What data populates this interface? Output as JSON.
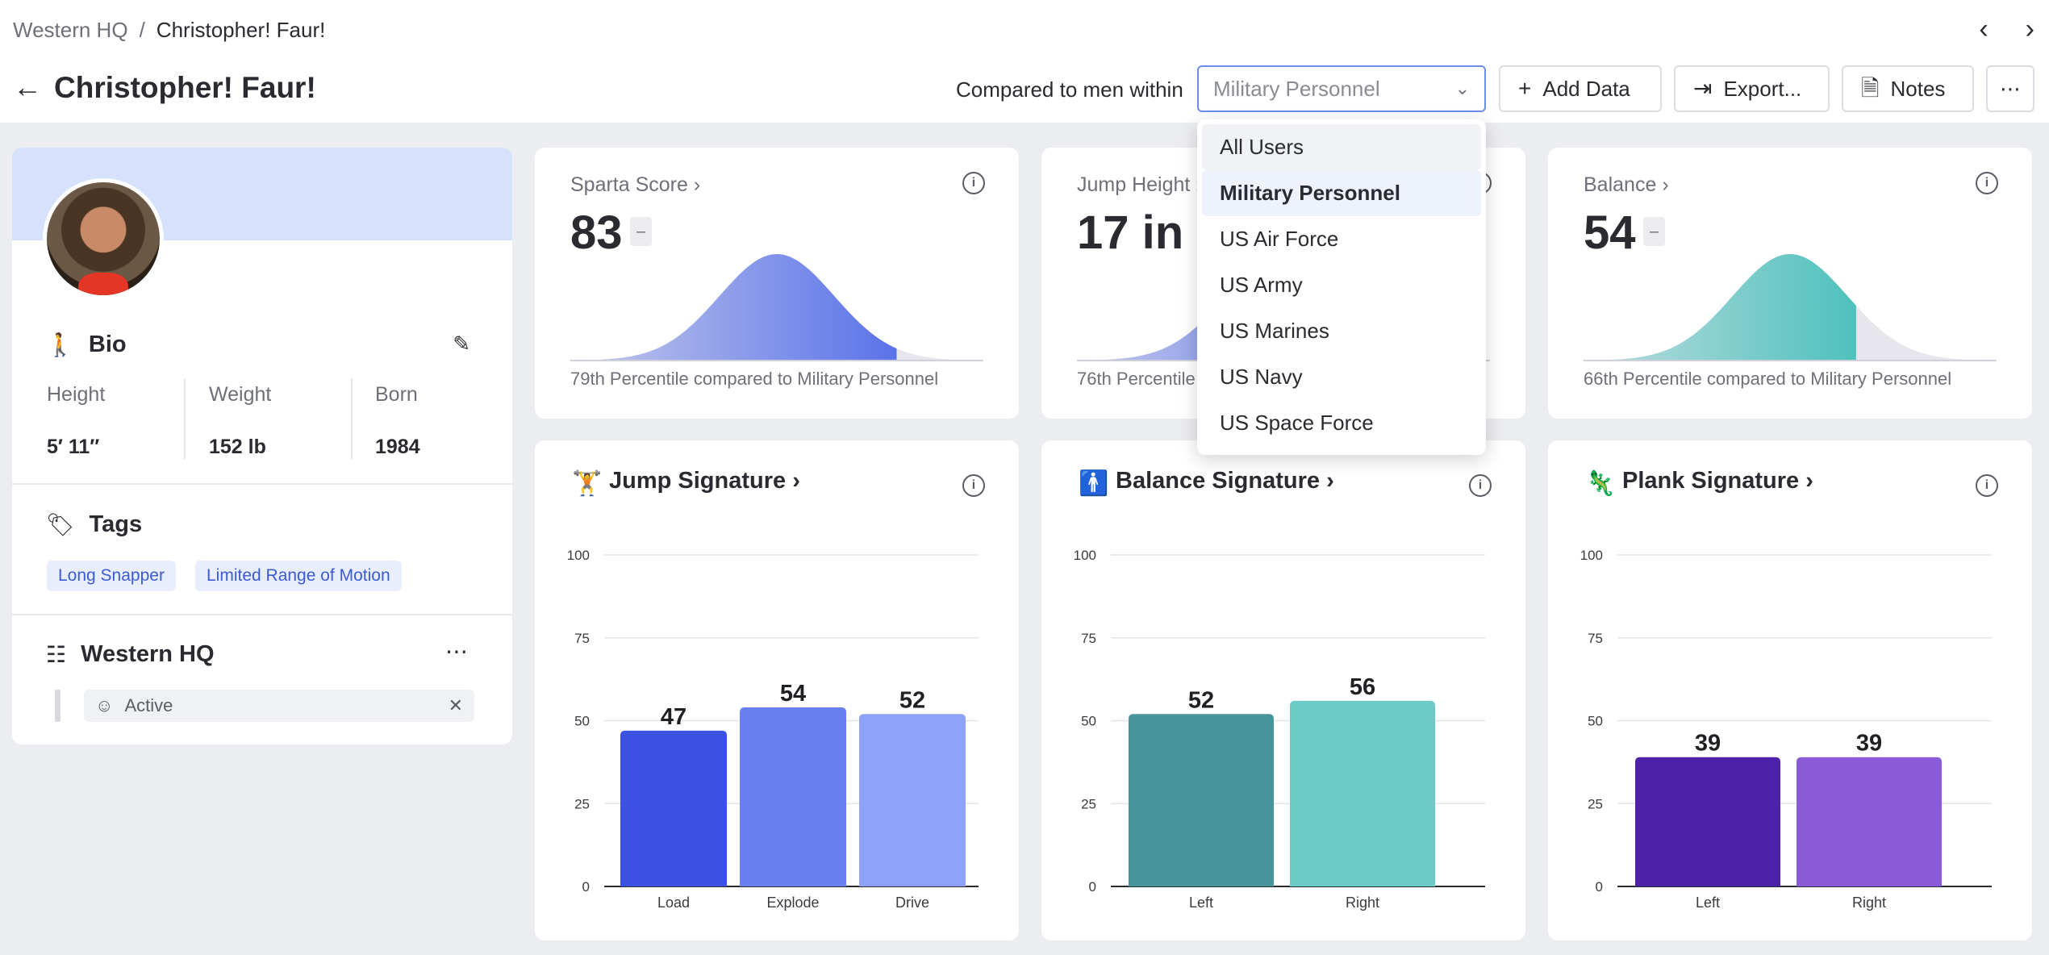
{
  "breadcrumb": {
    "parent": "Western HQ",
    "separator": "/",
    "current": "Christopher! Faur!"
  },
  "header": {
    "title": "Christopher! Faur!",
    "compare_label": "Compared to men within",
    "select_value": "Military Personnel",
    "add_data": "Add Data",
    "export": "Export...",
    "notes": "Notes"
  },
  "dropdown": {
    "options": [
      "All Users",
      "Military Personnel",
      "US Air Force",
      "US Army",
      "US Marines",
      "US Navy",
      "US Space Force"
    ],
    "selected": "Military Personnel"
  },
  "profile": {
    "bio_title": "Bio",
    "bio": [
      {
        "label": "Height",
        "value": "5′ 11″"
      },
      {
        "label": "Weight",
        "value": "152 lb"
      },
      {
        "label": "Born",
        "value": "1984"
      }
    ],
    "tags_title": "Tags",
    "tags": [
      "Long Snapper",
      "Limited Range of Motion"
    ],
    "org_title": "Western HQ",
    "status": "Active"
  },
  "metrics": [
    {
      "title": "Sparta Score",
      "value": "83",
      "dash": "–",
      "percentile": 79,
      "caption": "79th Percentile compared to Military Personnel",
      "color": "#5a72e9"
    },
    {
      "title": "Jump Height",
      "value": "17 in",
      "dash": "–",
      "percentile": 76,
      "caption": "76th Percentile compared to Military Personnel",
      "color": "#5a72e9"
    },
    {
      "title": "Balance",
      "value": "54",
      "dash": "–",
      "percentile": 66,
      "caption": "66th Percentile compared to Military Personnel",
      "color": "#4ec1bd"
    }
  ],
  "chart_data": [
    {
      "type": "bar",
      "title": "Jump Signature",
      "categories": [
        "Load",
        "Explode",
        "Drive"
      ],
      "values": [
        47,
        54,
        52
      ],
      "ylim": [
        0,
        100
      ],
      "yticks": [
        0,
        25,
        50,
        75,
        100
      ],
      "colors": [
        "#3b52e3",
        "#6880f0",
        "#8da2f8"
      ],
      "grid": true
    },
    {
      "type": "bar",
      "title": "Balance Signature",
      "categories": [
        "Left",
        "Right"
      ],
      "values": [
        52,
        56
      ],
      "ylim": [
        0,
        100
      ],
      "yticks": [
        0,
        25,
        50,
        75,
        100
      ],
      "colors": [
        "#46959a",
        "#6ccbc7"
      ],
      "grid": true
    },
    {
      "type": "bar",
      "title": "Plank Signature",
      "categories": [
        "Left",
        "Right"
      ],
      "values": [
        39,
        39
      ],
      "ylim": [
        0,
        100
      ],
      "yticks": [
        0,
        25,
        50,
        75,
        100
      ],
      "colors": [
        "#4d22a8",
        "#8a5bd8"
      ],
      "grid": true
    }
  ],
  "icons": {
    "back": "arrow-left-icon",
    "prev": "chevron-left-icon",
    "next": "chevron-right-icon",
    "select": "chevron-down-icon",
    "add": "plus-icon",
    "export": "export-icon",
    "notes": "document-icon",
    "more": "more-horizontal-icon",
    "info": "info-icon",
    "bio": "person-icon",
    "edit": "pencil-icon",
    "tags": "tag-icon",
    "org": "org-chart-icon"
  }
}
